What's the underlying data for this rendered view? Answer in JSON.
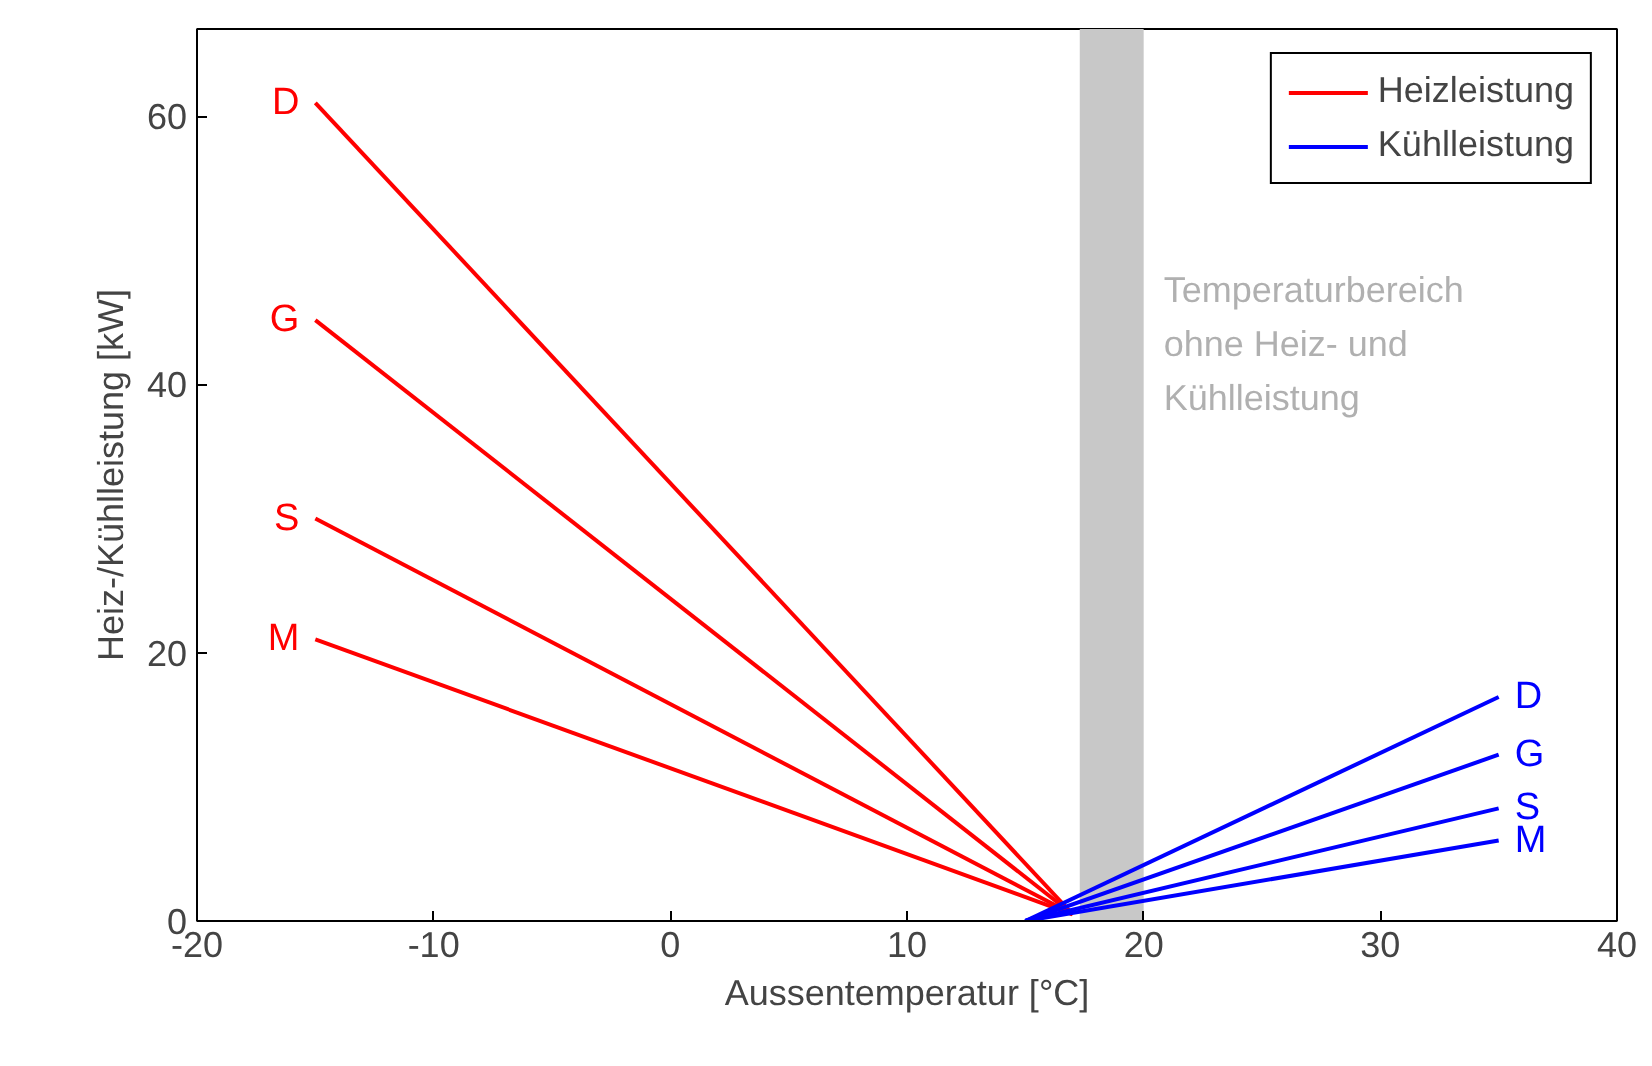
{
  "chart_data": {
    "type": "line",
    "xlabel": "Aussentemperatur [°C]",
    "ylabel": "Heiz-/Kühlleistung [kW]",
    "xlim": [
      -20,
      40
    ],
    "ylim": [
      0,
      66.5
    ],
    "xticks": [
      -20,
      -10,
      0,
      10,
      20,
      30,
      40
    ],
    "yticks": [
      0,
      20,
      40,
      60
    ],
    "grid": false,
    "legend": "top right",
    "marker": "none",
    "line_style": "solid",
    "series": [
      {
        "name": "Heizleistung",
        "color": "#ff0000",
        "x": [
          -15,
          17
        ],
        "values": [
          61,
          0.5
        ],
        "value_labels": [
          "D",
          null
        ]
      },
      {
        "color": "#ff0000",
        "x": [
          -15,
          17
        ],
        "values": [
          44.8,
          0.5
        ],
        "value_labels": [
          "G",
          null
        ]
      },
      {
        "color": "#ff0000",
        "x": [
          -15,
          17
        ],
        "values": [
          30,
          0.5
        ],
        "value_labels": [
          "S",
          null
        ]
      },
      {
        "color": "#ff0000",
        "x": [
          -15,
          17
        ],
        "values": [
          21,
          0.5
        ],
        "value_labels": [
          "M",
          null
        ]
      },
      {
        "name": "Kühlleistung",
        "color": "#0000ff",
        "x": [
          15,
          35
        ],
        "values": [
          0,
          16.7
        ],
        "value_labels": [
          null,
          "D"
        ]
      },
      {
        "color": "#0000ff",
        "x": [
          15,
          35
        ],
        "values": [
          0,
          12.4
        ],
        "value_labels": [
          null,
          "G"
        ]
      },
      {
        "color": "#0000ff",
        "x": [
          15,
          35
        ],
        "values": [
          0,
          8.4
        ],
        "value_labels": [
          null,
          "S"
        ]
      },
      {
        "color": "#0000ff",
        "x": [
          15,
          35
        ],
        "values": [
          0,
          6
        ],
        "value_labels": [
          null,
          "M"
        ]
      }
    ],
    "bands": [
      {
        "axis": "x",
        "from": 17.3,
        "to": 20,
        "color": "#c8c8c8",
        "label": "Temperaturbereich\nohne Heiz- und\nKühlleistung"
      }
    ]
  }
}
